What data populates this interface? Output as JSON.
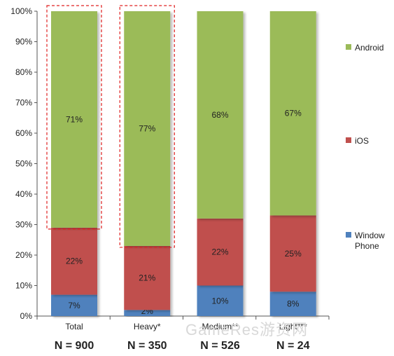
{
  "chart_data": {
    "type": "bar",
    "stacked": true,
    "categories": [
      "Total",
      "Heavy*",
      "Medium**",
      "Light***"
    ],
    "sample_sizes": [
      "N = 900",
      "N = 350",
      "N = 526",
      "N = 24"
    ],
    "series": [
      {
        "name": "Window Phone",
        "name_lines": [
          "Window",
          "Phone"
        ],
        "color": "#4f81bd",
        "values": [
          7,
          2,
          10,
          8
        ],
        "labels": [
          "7%",
          "2%",
          "10%",
          "8%"
        ]
      },
      {
        "name": "iOS",
        "name_lines": [
          "iOS"
        ],
        "color": "#c0504d",
        "values": [
          22,
          21,
          22,
          25
        ],
        "labels": [
          "22%",
          "21%",
          "22%",
          "25%"
        ]
      },
      {
        "name": "Android",
        "name_lines": [
          "Android"
        ],
        "color": "#9bbb59",
        "values": [
          71,
          77,
          68,
          67
        ],
        "labels": [
          "71%",
          "77%",
          "68%",
          "67%"
        ]
      }
    ],
    "y_ticks": [
      "0%",
      "10%",
      "20%",
      "30%",
      "40%",
      "50%",
      "60%",
      "70%",
      "80%",
      "90%",
      "100%"
    ],
    "ylim": [
      0,
      100
    ],
    "legend_position": "right",
    "highlight_color": "#e02020",
    "highlighted_android_segments": [
      "Total",
      "Heavy*"
    ]
  },
  "watermark": "GameRes游资网"
}
